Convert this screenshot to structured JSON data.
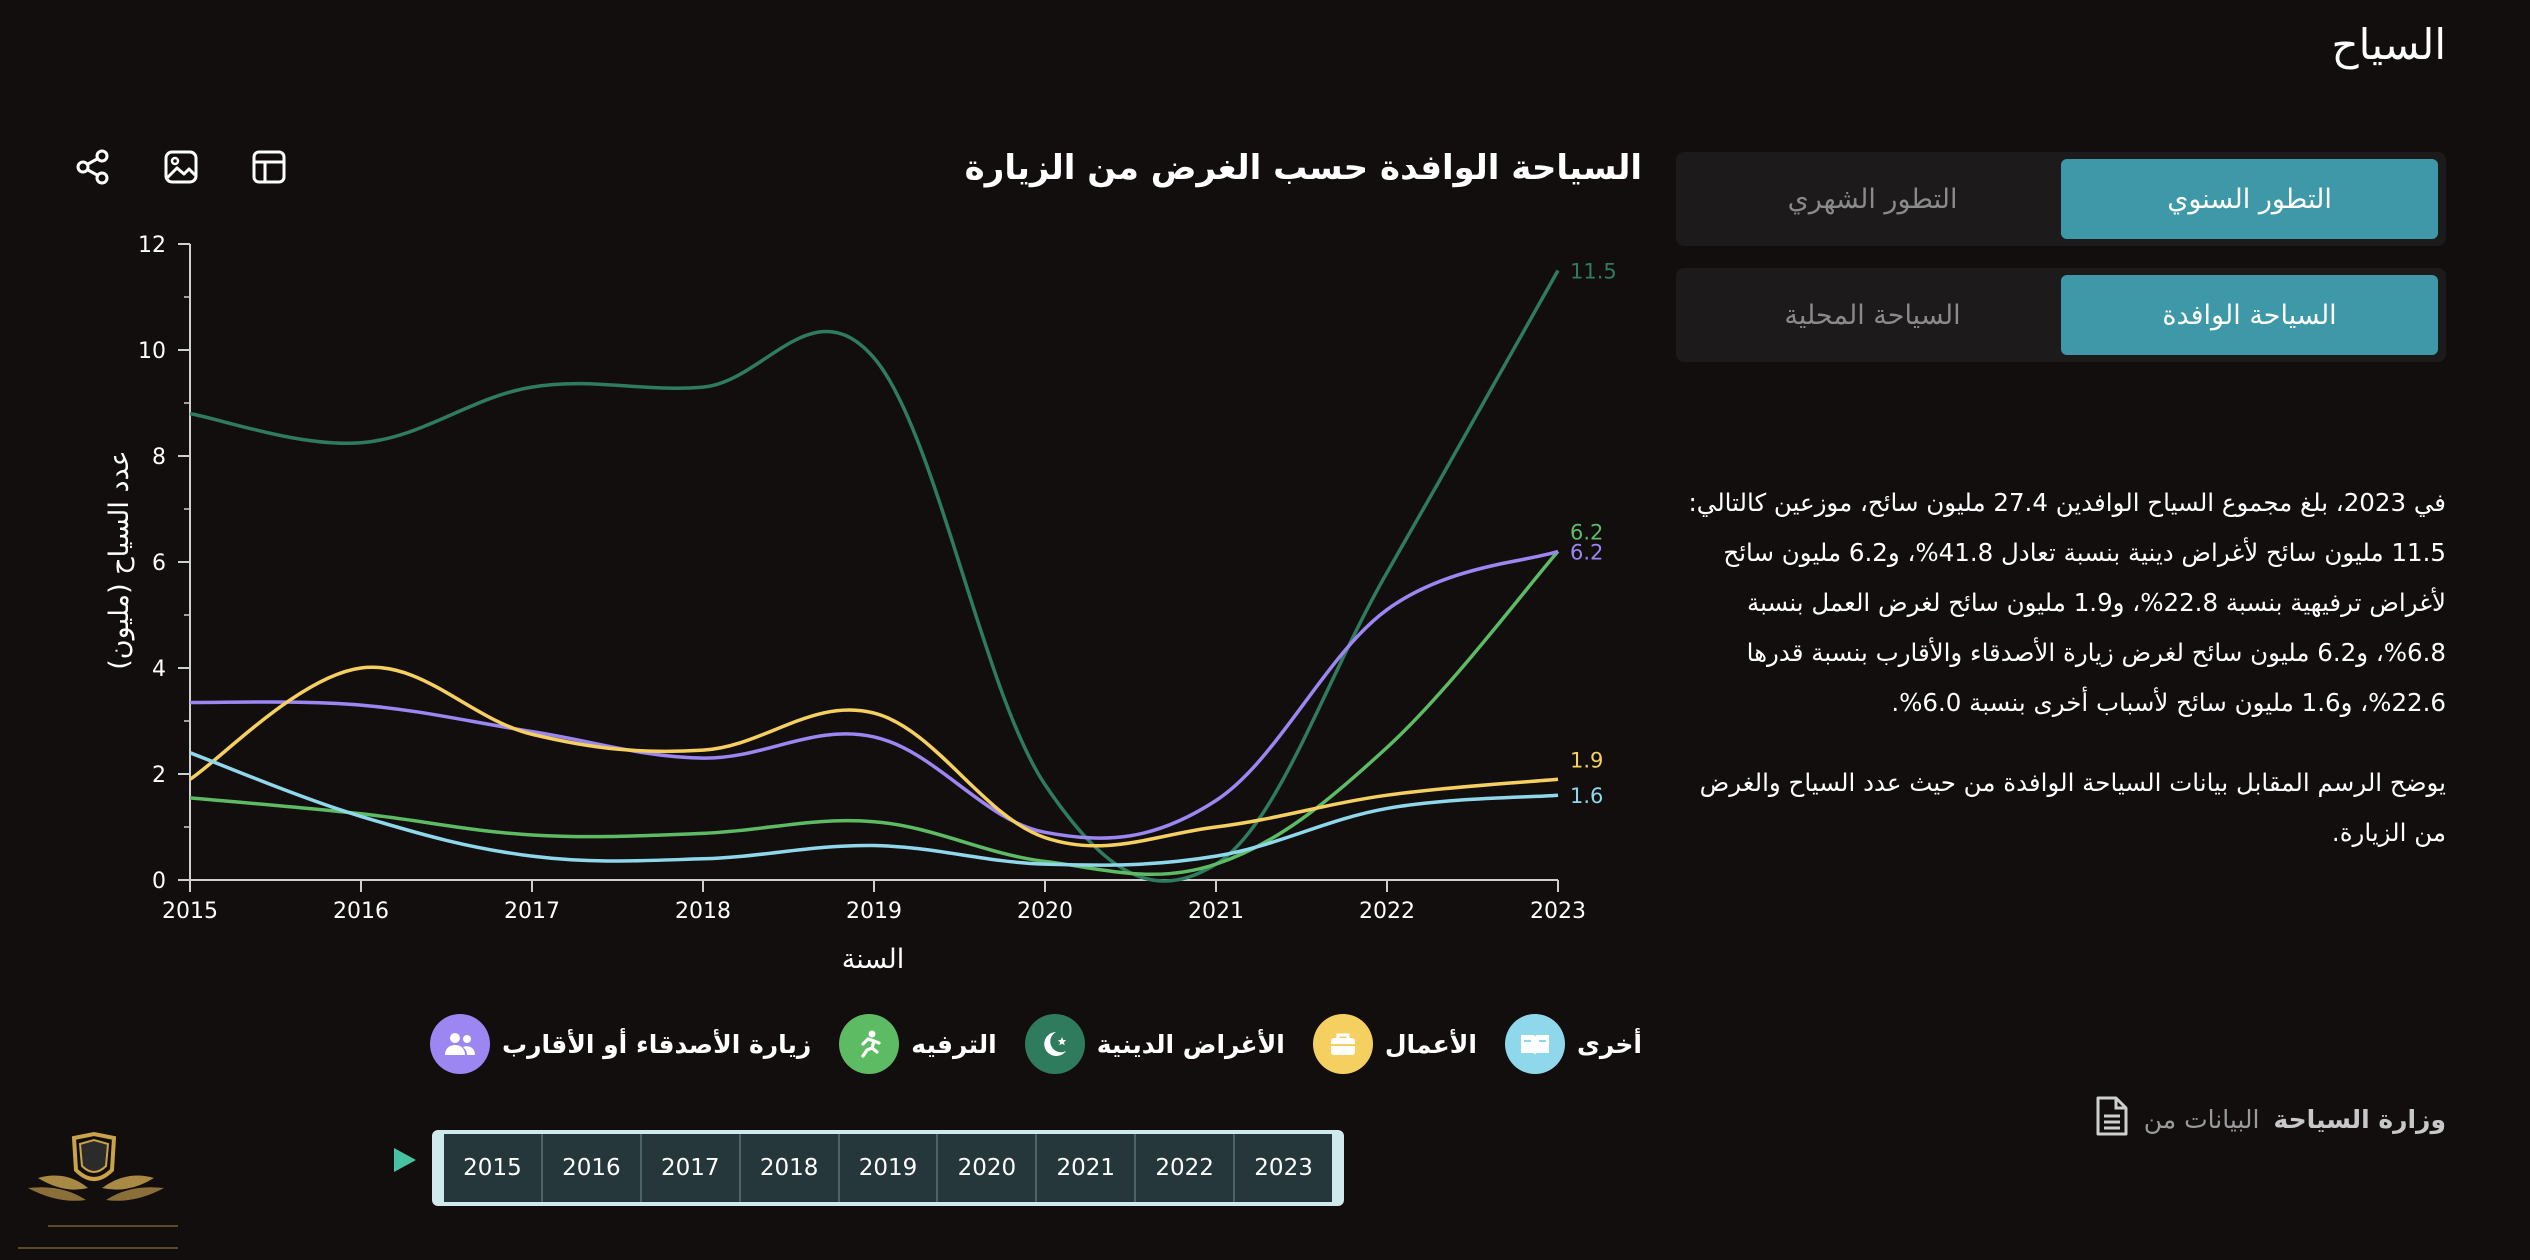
{
  "page": {
    "title": "السياح"
  },
  "toggles": {
    "period": [
      {
        "label": "التطور السنوي",
        "active": true
      },
      {
        "label": "التطور الشهري",
        "active": false
      }
    ],
    "type": [
      {
        "label": "السياحة الوافدة",
        "active": true
      },
      {
        "label": "السياحة المحلية",
        "active": false
      }
    ]
  },
  "description": {
    "p1": "في 2023، بلغ مجموع السياح الوافدين 27.4 مليون سائح، موزعين كالتالي: 11.5 مليون سائح لأغراض دينية بنسبة تعادل 41.8%، و6.2 مليون سائح لأغراض ترفيهية بنسبة 22.8%، و1.9 مليون سائح لغرض العمل بنسبة 6.8%، و6.2 مليون سائح لغرض زيارة الأصدقاء والأقارب بنسبة قدرها 22.6%، و1.6 مليون سائح لأسباب أخرى بنسبة 6.0%.",
    "p2": "يوضح الرسم المقابل بيانات السياحة الوافدة من حيث عدد السياح والغرض من الزيارة."
  },
  "source": {
    "prefix": "البيانات من",
    "name": "وزارة السياحة"
  },
  "legend": [
    {
      "label": "زيارة الأصدقاء أو الأقارب",
      "color": "#9b86f2",
      "icon": "people-icon"
    },
    {
      "label": "الترفيه",
      "color": "#5dbb63",
      "icon": "running-icon"
    },
    {
      "label": "الأغراض الدينية",
      "color": "#2f7b5e",
      "icon": "crescent-icon"
    },
    {
      "label": "الأعمال",
      "color": "#f5d061",
      "icon": "briefcase-icon"
    },
    {
      "label": "أخرى",
      "color": "#8fd8ec",
      "icon": "book-icon"
    }
  ],
  "timeline": {
    "years": [
      "2015",
      "2016",
      "2017",
      "2018",
      "2019",
      "2020",
      "2021",
      "2022",
      "2023"
    ]
  },
  "chart_data": {
    "type": "line",
    "title": "السياحة الوافدة حسب الغرض من الزيارة",
    "xlabel": "السنة",
    "ylabel": "عدد السياح (مليون)",
    "x": [
      2015,
      2016,
      2017,
      2018,
      2019,
      2020,
      2021,
      2022,
      2023
    ],
    "ylim": [
      0,
      12
    ],
    "yticks": [
      0,
      2,
      4,
      6,
      8,
      10,
      12
    ],
    "grid": false,
    "series": [
      {
        "name": "الأغراض الدينية",
        "color": "#2f7b5e",
        "values": [
          8.8,
          8.25,
          9.3,
          9.3,
          9.85,
          1.8,
          0.3,
          5.8,
          11.5
        ],
        "end_label": "11.5"
      },
      {
        "name": "الترفيه",
        "color": "#5dbb63",
        "values": [
          1.55,
          1.25,
          0.85,
          0.88,
          1.1,
          0.35,
          0.3,
          2.5,
          6.2
        ],
        "end_label": "6.2"
      },
      {
        "name": "زيارة الأصدقاء أو الأقارب",
        "color": "#9b86f2",
        "values": [
          3.35,
          3.3,
          2.8,
          2.3,
          2.7,
          0.9,
          1.5,
          5.1,
          6.2
        ],
        "end_label": "6.2"
      },
      {
        "name": "الأعمال",
        "color": "#f5d061",
        "values": [
          1.9,
          4.0,
          2.75,
          2.45,
          3.15,
          0.8,
          1.0,
          1.6,
          1.9
        ],
        "end_label": "1.9"
      },
      {
        "name": "أخرى",
        "color": "#8fd8ec",
        "values": [
          2.4,
          1.2,
          0.45,
          0.4,
          0.65,
          0.3,
          0.45,
          1.35,
          1.6
        ],
        "end_label": "1.6"
      }
    ]
  }
}
